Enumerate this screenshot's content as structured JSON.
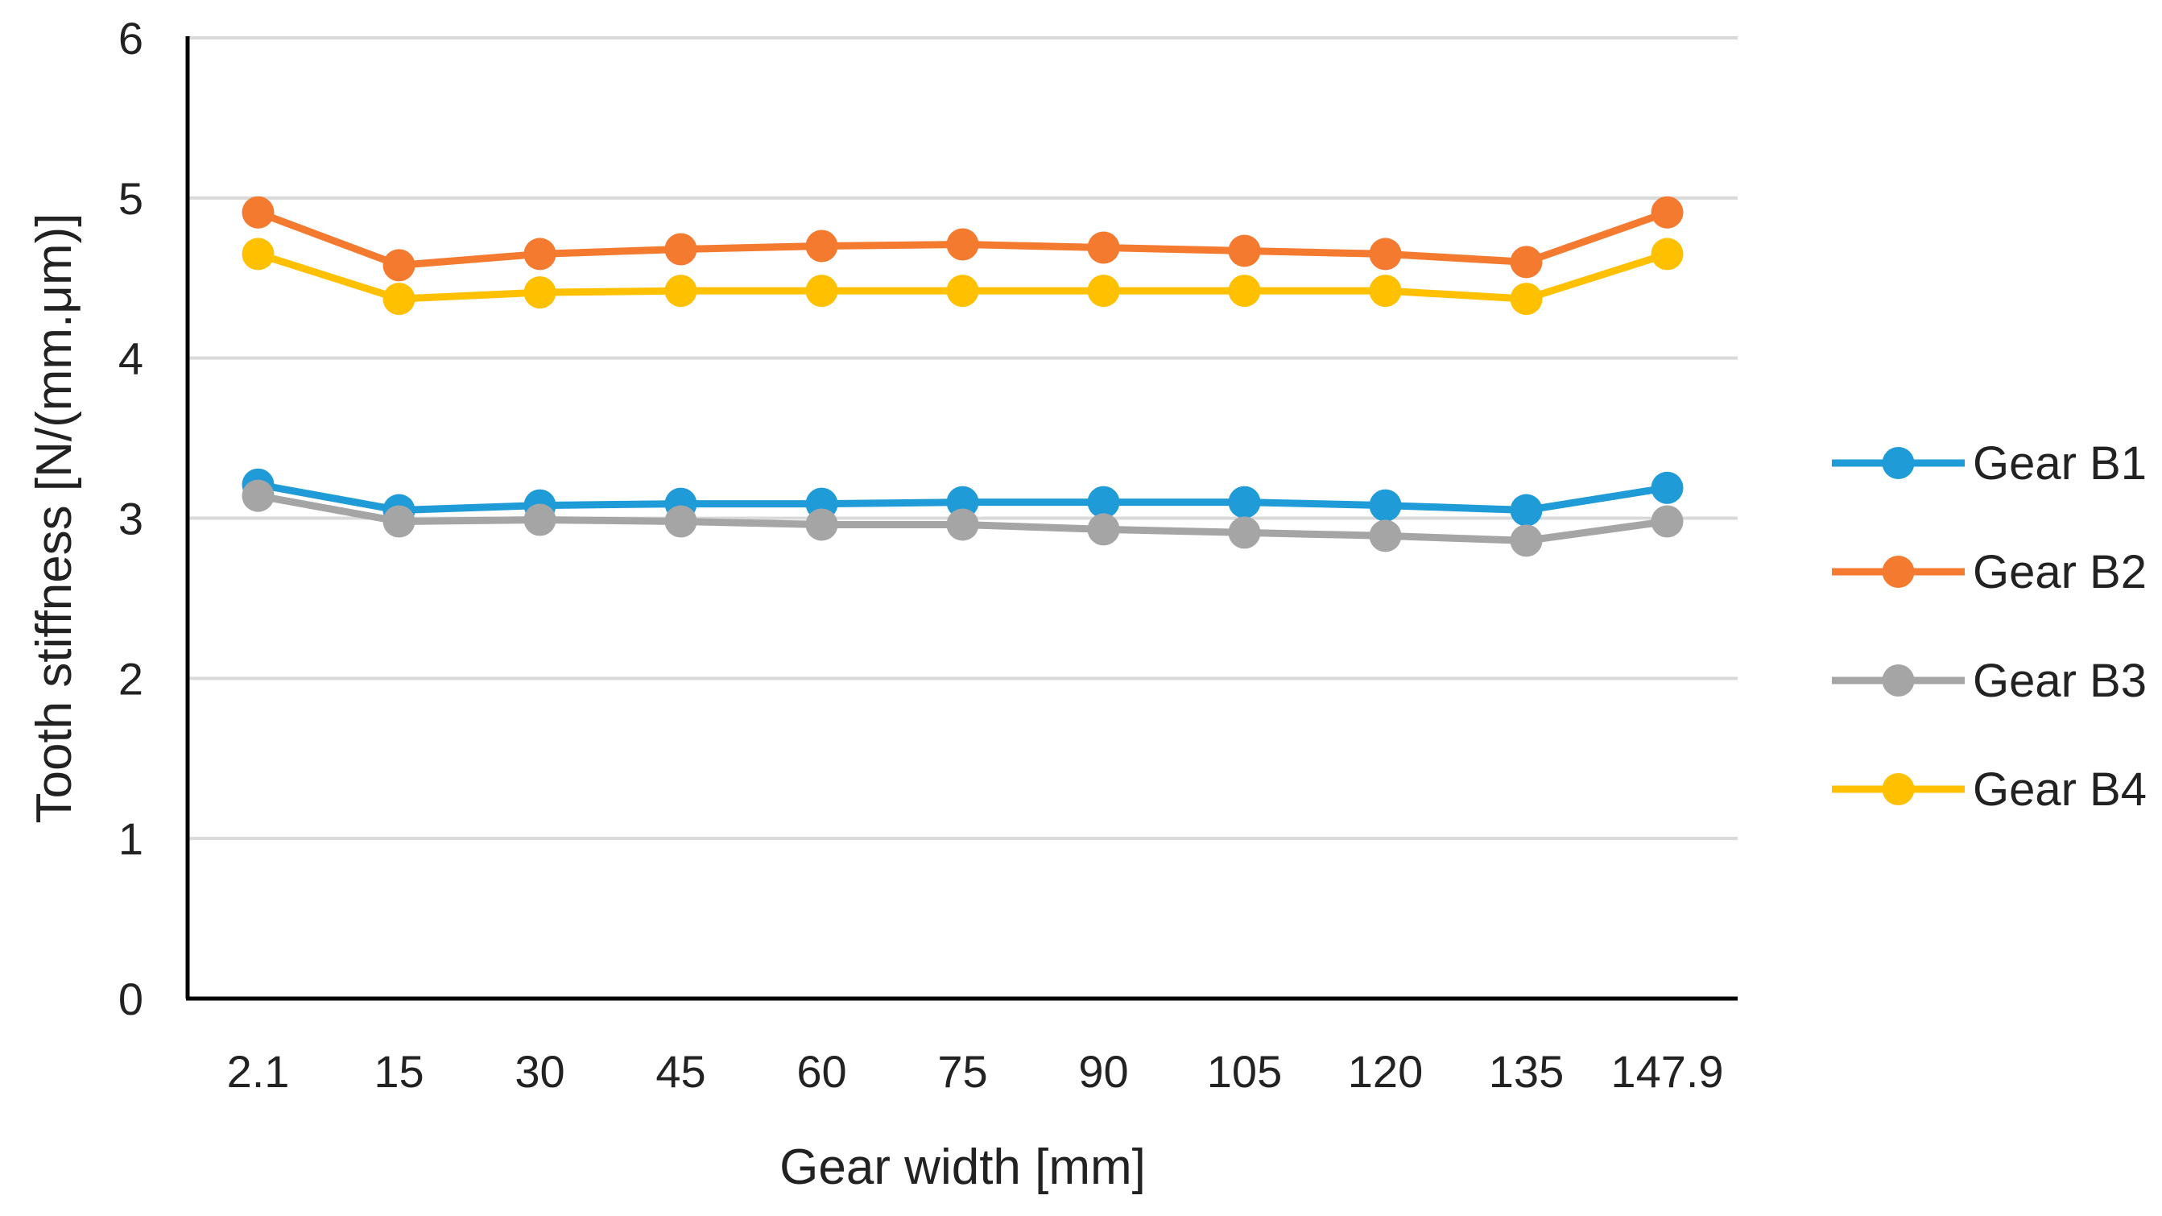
{
  "chart_data": {
    "type": "line",
    "title": "",
    "xlabel": "Gear width [mm]",
    "ylabel": "Tooth stiffness [N/(mm.μm)]",
    "categories": [
      "2.1",
      "15",
      "30",
      "45",
      "60",
      "75",
      "90",
      "105",
      "120",
      "135",
      "147.9"
    ],
    "ylim": [
      0,
      6
    ],
    "yticks": [
      "0",
      "1",
      "2",
      "3",
      "4",
      "5",
      "6"
    ],
    "grid": true,
    "legend_position": "right",
    "series": [
      {
        "name": "Gear B1",
        "color": "#1f9bd7",
        "values": [
          3.21,
          3.05,
          3.08,
          3.09,
          3.09,
          3.1,
          3.1,
          3.1,
          3.08,
          3.05,
          3.19
        ]
      },
      {
        "name": "Gear B2",
        "color": "#f47a30",
        "values": [
          4.91,
          4.58,
          4.65,
          4.68,
          4.7,
          4.71,
          4.69,
          4.67,
          4.65,
          4.6,
          4.91
        ]
      },
      {
        "name": "Gear B3",
        "color": "#a5a5a5",
        "values": [
          3.14,
          2.98,
          2.99,
          2.98,
          2.96,
          2.96,
          2.93,
          2.91,
          2.89,
          2.86,
          2.98
        ]
      },
      {
        "name": "Gear B4",
        "color": "#ffc000",
        "values": [
          4.65,
          4.37,
          4.41,
          4.42,
          4.42,
          4.42,
          4.42,
          4.42,
          4.42,
          4.37,
          4.65
        ]
      }
    ]
  }
}
